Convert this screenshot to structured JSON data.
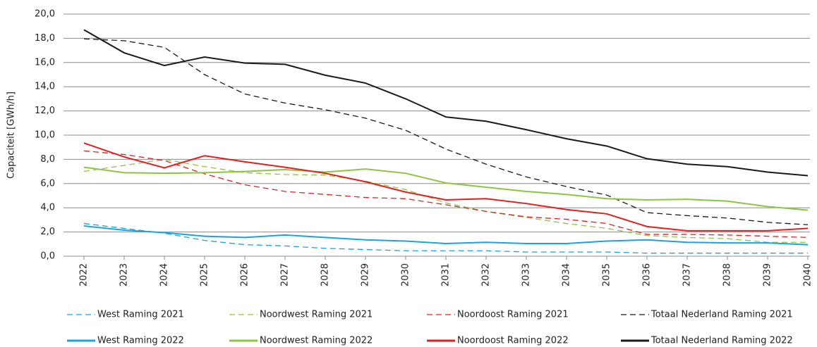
{
  "chart_data": {
    "type": "line",
    "y_label": "Capaciteit [GWh/h]",
    "categories": [
      "2022",
      "2023",
      "2024",
      "2025",
      "2026",
      "2027",
      "2028",
      "2029",
      "2030",
      "2031",
      "2032",
      "2033",
      "2034",
      "2035",
      "2036",
      "2037",
      "2038",
      "2039",
      "2040"
    ],
    "ylim": [
      0,
      20
    ],
    "yticks": [
      {
        "value": 0,
        "label": "0,0"
      },
      {
        "value": 2,
        "label": "2,0"
      },
      {
        "value": 4,
        "label": "4,0"
      },
      {
        "value": 6,
        "label": "6,0"
      },
      {
        "value": 8,
        "label": "8,0"
      },
      {
        "value": 10,
        "label": "10,0"
      },
      {
        "value": 12,
        "label": "12,0"
      },
      {
        "value": 14,
        "label": "14,0"
      },
      {
        "value": 16,
        "label": "16,0"
      },
      {
        "value": 18,
        "label": "18,0"
      },
      {
        "value": 20,
        "label": "20,0"
      }
    ],
    "grid": true,
    "legend": "bottom",
    "series": [
      {
        "name": "West Raming 2021",
        "color": "#1aa3e0",
        "dashed": true,
        "values": [
          2.7,
          2.3,
          1.9,
          1.3,
          0.95,
          0.85,
          0.65,
          0.55,
          0.45,
          0.45,
          0.45,
          0.35,
          0.35,
          0.35,
          0.25,
          0.25,
          0.25,
          0.25,
          0.25
        ]
      },
      {
        "name": "Noordwest Raming 2021",
        "color": "#8cc63f",
        "dashed": true,
        "values": [
          7.0,
          7.5,
          8.0,
          7.4,
          6.9,
          6.75,
          6.7,
          6.2,
          5.5,
          4.4,
          3.7,
          3.2,
          2.7,
          2.3,
          1.7,
          1.55,
          1.45,
          1.15,
          1.15
        ]
      },
      {
        "name": "Noordoost Raming 2021",
        "color": "#e02020",
        "dashed": true,
        "values": [
          8.7,
          8.4,
          7.9,
          6.8,
          5.9,
          5.35,
          5.1,
          4.85,
          4.75,
          4.25,
          3.7,
          3.25,
          3.05,
          2.7,
          1.8,
          1.8,
          1.75,
          1.65,
          1.55
        ]
      },
      {
        "name": "Totaal Nederland Raming 2021",
        "color": "#1a1a1a",
        "dashed": true,
        "values": [
          17.95,
          17.8,
          17.25,
          15.0,
          13.4,
          12.65,
          12.1,
          11.4,
          10.4,
          8.85,
          7.6,
          6.55,
          5.75,
          5.05,
          3.6,
          3.35,
          3.15,
          2.8,
          2.6
        ]
      },
      {
        "name": "West Raming 2022",
        "color": "#1aa3e0",
        "dashed": false,
        "values": [
          2.5,
          2.15,
          1.95,
          1.65,
          1.55,
          1.75,
          1.55,
          1.35,
          1.25,
          1.05,
          1.15,
          1.05,
          1.05,
          1.25,
          1.35,
          1.15,
          1.1,
          1.1,
          0.95
        ]
      },
      {
        "name": "Noordwest Raming 2022",
        "color": "#8cc63f",
        "dashed": false,
        "values": [
          7.35,
          6.9,
          6.85,
          6.9,
          7.0,
          7.15,
          6.95,
          7.2,
          6.85,
          6.05,
          5.7,
          5.35,
          5.1,
          4.75,
          4.65,
          4.7,
          4.55,
          4.1,
          3.8
        ]
      },
      {
        "name": "Noordoost Raming 2022",
        "color": "#e02020",
        "dashed": false,
        "values": [
          9.35,
          8.2,
          7.3,
          8.3,
          7.8,
          7.35,
          6.85,
          6.15,
          5.3,
          4.65,
          4.75,
          4.35,
          3.85,
          3.5,
          2.45,
          2.1,
          2.1,
          2.1,
          2.3
        ]
      },
      {
        "name": "Totaal Nederland Raming 2022",
        "color": "#1a1a1a",
        "dashed": false,
        "values": [
          18.7,
          16.8,
          15.75,
          16.45,
          15.95,
          15.85,
          14.95,
          14.3,
          13.0,
          11.5,
          11.15,
          10.45,
          9.7,
          9.1,
          8.05,
          7.6,
          7.4,
          6.95,
          6.65
        ]
      }
    ]
  }
}
